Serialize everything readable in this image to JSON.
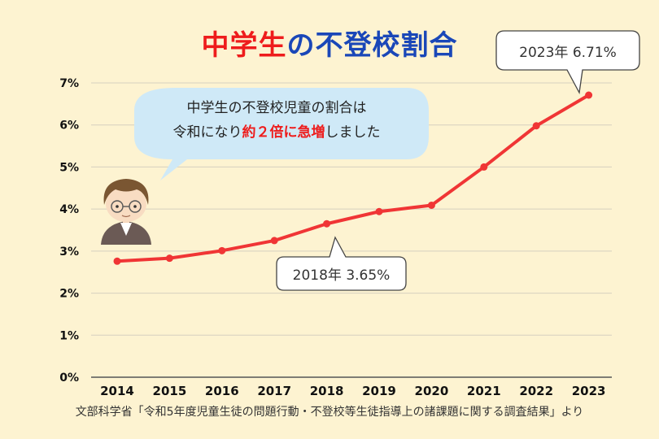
{
  "title_part1": "中学生",
  "title_part2": "の不登校割合",
  "source": "文部科学省「令和5年度児童生徒の問題行動・不登校等生徒指導上の諸課題に関する調査結果」より",
  "speech": {
    "line1": "中学生の不登校児童の割合は",
    "line2_pre": "令和になり",
    "line2_emph": "約２倍に急増",
    "line2_post": "しました"
  },
  "callouts": {
    "c2023": "2023年 6.71%",
    "c2018": "2018年 3.65%"
  },
  "colors": {
    "background": "#fdf3d1",
    "line": "#f03535",
    "title_red": "#ee1c1c",
    "title_blue": "#1a47b8",
    "bubble": "#cfe9f7",
    "grid": "#d6d0bf"
  },
  "chart_data": {
    "type": "line",
    "categories": [
      "2014",
      "2015",
      "2016",
      "2017",
      "2018",
      "2019",
      "2020",
      "2021",
      "2022",
      "2023"
    ],
    "series": [
      {
        "values": [
          2.76,
          2.83,
          3.01,
          3.25,
          3.65,
          3.94,
          4.09,
          5.0,
          5.98,
          6.71
        ]
      }
    ],
    "y_ticks": [
      "0%",
      "1%",
      "2%",
      "3%",
      "4%",
      "5%",
      "6%",
      "7%"
    ],
    "ylim": [
      0,
      7
    ],
    "grid": true,
    "legend": "none"
  }
}
